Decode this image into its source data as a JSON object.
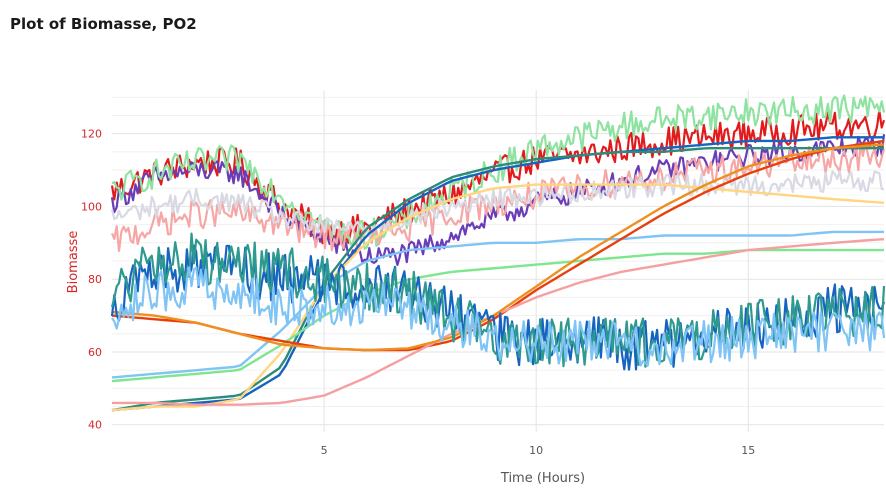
{
  "page": {
    "title": "Plot of Biomasse, PO2"
  },
  "chart_data": {
    "type": "line",
    "title": "Plot of Biomasse, PO2",
    "xlabel": "Time (Hours)",
    "ylabel": "Biomasse",
    "x_range": [
      0,
      18.2
    ],
    "ylim": [
      38,
      132
    ],
    "x_ticks": [
      5,
      10,
      15
    ],
    "y_ticks": [
      40,
      60,
      80,
      100,
      120
    ],
    "grid": true,
    "legend": "none",
    "x": [
      0,
      1,
      2,
      3,
      4,
      5,
      6,
      7,
      8,
      9,
      10,
      11,
      12,
      13,
      14,
      15,
      16,
      17,
      18.2
    ],
    "series": [
      {
        "color": "#e31a1c",
        "noise": 4,
        "values": [
          104,
          109,
          112,
          112,
          100,
          93,
          94,
          99,
          103,
          109,
          113,
          114,
          116,
          118,
          119,
          120,
          121,
          122,
          123
        ]
      },
      {
        "color": "#6a3db8",
        "noise": 3,
        "values": [
          101,
          108,
          110,
          109,
          98,
          91,
          86,
          87,
          92,
          97,
          101,
          104,
          107,
          110,
          112,
          114,
          115,
          116,
          117
        ]
      },
      {
        "color": "#8fe3a0",
        "noise": 4,
        "values": [
          104,
          109,
          112,
          113,
          103,
          94,
          92,
          97,
          104,
          110,
          116,
          119,
          122,
          124,
          125,
          126,
          126,
          127,
          127
        ]
      },
      {
        "color": "#f7a6a6",
        "noise": 4,
        "values": [
          90,
          95,
          98,
          98,
          95,
          92,
          91,
          94,
          98,
          101,
          103,
          105,
          107,
          108,
          110,
          111,
          112,
          113,
          114
        ]
      },
      {
        "color": "#d9d9e3",
        "noise": 3,
        "values": [
          97,
          100,
          102,
          101,
          97,
          94,
          94,
          97,
          100,
          102,
          103,
          104,
          105,
          106,
          106,
          106,
          106,
          107,
          107
        ]
      },
      {
        "color": "#1565c0",
        "noise": 0,
        "values": [
          44,
          45,
          46,
          47,
          54,
          77,
          92,
          101,
          107,
          110,
          112,
          114,
          115,
          116,
          117,
          118,
          118,
          119,
          119
        ]
      },
      {
        "color": "#2e8b7a",
        "noise": 0,
        "values": [
          44,
          46,
          47,
          48,
          56,
          79,
          94,
          102,
          108,
          111,
          113,
          114,
          115,
          115,
          116,
          116,
          116,
          116,
          116
        ]
      },
      {
        "color": "#ffd580",
        "noise": 0,
        "values": [
          44,
          45,
          45,
          47,
          60,
          78,
          90,
          97,
          102,
          105,
          106,
          106,
          106,
          106,
          105,
          104,
          103,
          102,
          101
        ]
      },
      {
        "color": "#7fc4f4",
        "noise": 0,
        "values": [
          53,
          54,
          55,
          56,
          66,
          78,
          85,
          88,
          89,
          90,
          90,
          91,
          91,
          92,
          92,
          92,
          92,
          93,
          93
        ]
      },
      {
        "color": "#7ee68e",
        "noise": 0,
        "values": [
          52,
          53,
          54,
          55,
          62,
          70,
          76,
          80,
          82,
          83,
          84,
          85,
          86,
          87,
          87,
          88,
          88,
          88,
          88
        ]
      },
      {
        "color": "#e8400c",
        "noise": 0,
        "values": [
          70,
          69,
          68,
          65,
          63,
          61,
          60.5,
          60.5,
          63,
          69,
          77,
          84,
          91,
          98,
          104,
          109,
          113,
          116,
          118
        ]
      },
      {
        "color": "#f5a0a0",
        "noise": 0,
        "values": [
          46,
          46,
          45.5,
          45.5,
          46,
          48,
          53,
          59,
          65,
          70,
          75,
          79,
          82,
          84,
          86,
          88,
          89,
          90,
          91
        ]
      },
      {
        "color": "#ef8f1f",
        "noise": 0,
        "values": [
          71,
          70,
          68,
          65,
          62,
          61,
          60.5,
          61,
          64,
          70,
          78,
          86,
          93,
          100,
          106,
          111,
          114,
          116,
          117
        ]
      },
      {
        "color": "#1565c0",
        "noise": 7,
        "values": [
          74,
          82,
          84,
          82,
          80,
          80,
          78,
          76,
          70,
          64,
          62,
          64,
          62,
          62,
          64,
          67,
          69,
          72,
          73
        ]
      },
      {
        "color": "#2e9a8f",
        "noise": 7,
        "values": [
          76,
          84,
          86,
          84,
          82,
          80,
          78,
          76,
          70,
          64,
          62,
          63,
          62,
          63,
          65,
          67,
          69,
          71,
          72
        ]
      },
      {
        "color": "#7fc4f4",
        "noise": 6,
        "values": [
          72,
          76,
          78,
          76,
          72,
          72,
          74,
          72,
          68,
          64,
          62,
          63,
          62,
          62,
          63,
          64,
          65,
          66,
          66
        ]
      }
    ]
  }
}
